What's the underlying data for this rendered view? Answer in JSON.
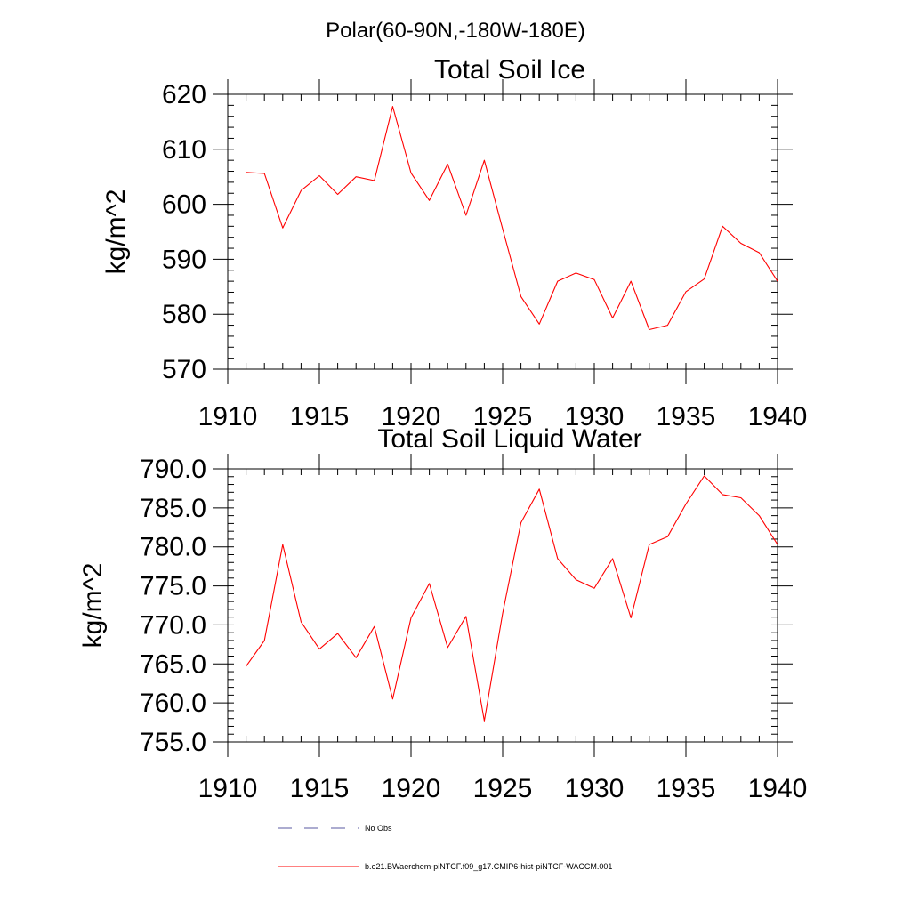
{
  "figure": {
    "suptitle": "Polar(60-90N,-180W-180E)"
  },
  "chart_data": [
    {
      "type": "line",
      "title": "Total Soil Ice",
      "xlabel": "",
      "ylabel": "kg/m^2",
      "xlim": [
        1910,
        1940
      ],
      "ylim": [
        570,
        620
      ],
      "xticks": [
        1910,
        1915,
        1920,
        1925,
        1930,
        1935,
        1940
      ],
      "xtick_labels": [
        "1910",
        "1915",
        "1920",
        "1925",
        "1930",
        "1935",
        "1940"
      ],
      "yticks": [
        570,
        580,
        590,
        600,
        610,
        620
      ],
      "ytick_labels": [
        "570",
        "580",
        "590",
        "600",
        "610",
        "620"
      ],
      "y_minor_step": 2,
      "x_minor_step": 1,
      "x": [
        1911,
        1912,
        1913,
        1914,
        1915,
        1916,
        1917,
        1918,
        1919,
        1920,
        1921,
        1922,
        1923,
        1924,
        1925,
        1926,
        1927,
        1928,
        1929,
        1930,
        1931,
        1932,
        1933,
        1934,
        1935,
        1936,
        1937,
        1938,
        1939,
        1940
      ],
      "series": [
        {
          "name": "b.e21.BWaerchem-piNTCF.f09_g17.CMIP6-hist-piNTCF-WACCM.001",
          "color": "#ff0000",
          "values": [
            605.8,
            605.6,
            595.7,
            602.5,
            605.2,
            601.8,
            605.0,
            604.3,
            617.8,
            605.7,
            600.7,
            607.3,
            598.0,
            608.0,
            595.5,
            583.2,
            578.2,
            586.0,
            587.5,
            586.3,
            579.3,
            586.0,
            577.2,
            578.0,
            584.1,
            586.4,
            596.0,
            592.9,
            591.2,
            586.0
          ]
        }
      ],
      "grid": false
    },
    {
      "type": "line",
      "title": "Total Soil Liquid Water",
      "xlabel": "",
      "ylabel": "kg/m^2",
      "xlim": [
        1910,
        1940
      ],
      "ylim": [
        755,
        790
      ],
      "xticks": [
        1910,
        1915,
        1920,
        1925,
        1930,
        1935,
        1940
      ],
      "xtick_labels": [
        "1910",
        "1915",
        "1920",
        "1925",
        "1930",
        "1935",
        "1940"
      ],
      "yticks": [
        755,
        760,
        765,
        770,
        775,
        780,
        785,
        790
      ],
      "ytick_labels": [
        "755.0",
        "760.0",
        "765.0",
        "770.0",
        "775.0",
        "780.0",
        "785.0",
        "790.0"
      ],
      "y_minor_step": 1,
      "x_minor_step": 1,
      "x": [
        1911,
        1912,
        1913,
        1914,
        1915,
        1916,
        1917,
        1918,
        1919,
        1920,
        1921,
        1922,
        1923,
        1924,
        1925,
        1926,
        1927,
        1928,
        1929,
        1930,
        1931,
        1932,
        1933,
        1934,
        1935,
        1936,
        1937,
        1938,
        1939,
        1940
      ],
      "series": [
        {
          "name": "b.e21.BWaerchem-piNTCF.f09_g17.CMIP6-hist-piNTCF-WACCM.001",
          "color": "#ff0000",
          "values": [
            764.7,
            768.0,
            780.3,
            770.4,
            766.9,
            768.9,
            765.8,
            769.8,
            760.5,
            770.9,
            775.3,
            767.1,
            771.1,
            757.7,
            771.5,
            783.1,
            787.4,
            778.5,
            775.8,
            774.7,
            778.5,
            770.9,
            780.3,
            781.3,
            785.5,
            789.1,
            786.7,
            786.3,
            784.0,
            780.3
          ]
        }
      ],
      "grid": false
    }
  ],
  "legend": {
    "placement": "bottom-left",
    "items": [
      {
        "label": "No Obs",
        "style": "dashed",
        "color": "#5a5aa0"
      },
      {
        "label": "b.e21.BWaerchem-piNTCF.f09_g17.CMIP6-hist-piNTCF-WACCM.001",
        "style": "solid",
        "color": "#ff0000"
      }
    ]
  }
}
